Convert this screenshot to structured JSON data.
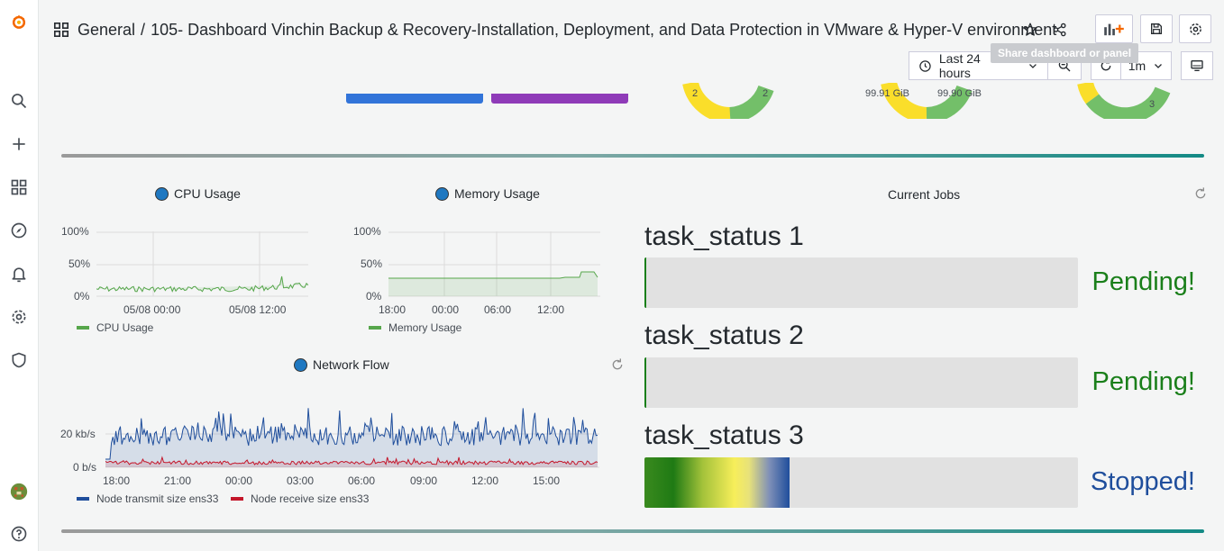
{
  "colors": {
    "accent_green": "#1a7f1a",
    "stopped_blue": "#1f4e9c",
    "cpu_line": "#56a64b",
    "transmit": "#1f4e9c",
    "receive": "#c4162a",
    "bar_blue": "#3274d9",
    "bar_purple": "#8f3bb8"
  },
  "sidebar": {
    "items": [
      "grafana-logo",
      "search",
      "create",
      "dashboards",
      "explore",
      "alerting",
      "configuration",
      "server-admin"
    ],
    "bottom": [
      "profile-avatar",
      "help"
    ]
  },
  "header": {
    "folder": "General",
    "separator": "/",
    "title": "105- Dashboard Vinchin Backup & Recovery-Installation, Deployment, and Data Protection in VMware & Hyper-V environment",
    "tooltip": "Share dashboard or panel"
  },
  "time_controls": {
    "range": "Last 24 hours",
    "refresh_interval": "1m"
  },
  "top_remnants": {
    "gauge1_labels": [
      "2",
      "2"
    ],
    "gauge2_labels": [
      "99.91 GiB",
      "99.90 GiB"
    ],
    "gauge3_labels": [
      "3"
    ]
  },
  "panels": {
    "cpu": {
      "title": "CPU Usage",
      "y_ticks": [
        "100%",
        "50%",
        "0%"
      ],
      "x_ticks": [
        "05/08 00:00",
        "05/08 12:00"
      ],
      "legend": "CPU Usage"
    },
    "memory": {
      "title": "Memory Usage",
      "y_ticks": [
        "100%",
        "50%",
        "0%"
      ],
      "x_ticks": [
        "18:00",
        "00:00",
        "06:00",
        "12:00"
      ],
      "legend": "Memory Usage"
    },
    "network": {
      "title": "Network Flow",
      "y_ticks": [
        "20 kb/s",
        "0 b/s"
      ],
      "x_ticks": [
        "18:00",
        "21:00",
        "00:00",
        "03:00",
        "06:00",
        "09:00",
        "12:00",
        "15:00"
      ],
      "legend": [
        "Node transmit size ens33",
        "Node receive size ens33"
      ]
    },
    "jobs": {
      "title": "Current Jobs",
      "tasks": [
        {
          "name": "task_status 1",
          "status": "Pending!",
          "fill": 0
        },
        {
          "name": "task_status 2",
          "status": "Pending!",
          "fill": 0
        },
        {
          "name": "task_status 3",
          "status": "Stopped!",
          "fill": 0.335
        }
      ]
    }
  }
}
